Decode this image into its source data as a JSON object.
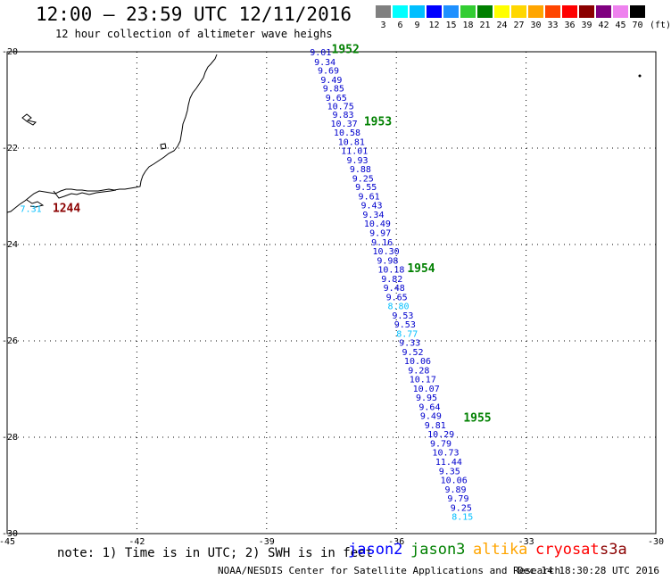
{
  "header": {
    "title": "12:00 – 23:59 UTC 12/11/2016",
    "subtitle": "12 hour collection of altimeter wave heighs"
  },
  "scale": {
    "labels": [
      "3",
      "6",
      "9",
      "12",
      "15",
      "18",
      "21",
      "24",
      "27",
      "30",
      "33",
      "36",
      "39",
      "42",
      "45",
      "70"
    ],
    "colors": [
      "#808080",
      "#00ffff",
      "#00bfff",
      "#0000ff",
      "#1e90ff",
      "#32cd32",
      "#008000",
      "#ffff00",
      "#ffd700",
      "#ffa500",
      "#ff4500",
      "#ff0000",
      "#8b0000",
      "#800080",
      "#ee82ee",
      "#000000"
    ],
    "unit": "(ft)"
  },
  "map": {
    "lon_ticks": [
      "-45",
      "-42",
      "-39",
      "-36",
      "-33",
      "-30"
    ],
    "lat_ticks": [
      "-20",
      "-22",
      "-24",
      "-26",
      "-28",
      "-30"
    ],
    "lon_range": [
      -45,
      -30
    ],
    "lat_range": [
      -30,
      -20
    ],
    "pass_labels": [
      {
        "text": "1952",
        "color": "#008000",
        "lon": -37.5,
        "lat": -19.95
      },
      {
        "text": "1953",
        "color": "#008000",
        "lon": -36.75,
        "lat": -21.45
      },
      {
        "text": "1954",
        "color": "#008000",
        "lon": -35.75,
        "lat": -24.5
      },
      {
        "text": "1955",
        "color": "#008000",
        "lon": -34.45,
        "lat": -27.6
      },
      {
        "text": "1244",
        "color": "#8b0000",
        "lon": -43.95,
        "lat": -23.25
      }
    ],
    "observations": [
      {
        "v": "9.01",
        "lon": -38.0,
        "lat": -20.0,
        "c": "#0000cd"
      },
      {
        "v": "9.34",
        "lon": -37.9,
        "lat": -20.2,
        "c": "#0000cd"
      },
      {
        "v": "9.69",
        "lon": -37.82,
        "lat": -20.38,
        "c": "#0000cd"
      },
      {
        "v": "9.49",
        "lon": -37.75,
        "lat": -20.57,
        "c": "#0000cd"
      },
      {
        "v": "9.85",
        "lon": -37.7,
        "lat": -20.75,
        "c": "#0000cd"
      },
      {
        "v": "9.65",
        "lon": -37.64,
        "lat": -20.94,
        "c": "#0000cd"
      },
      {
        "v": "10.75",
        "lon": -37.6,
        "lat": -21.12,
        "c": "#0000cd"
      },
      {
        "v": "9.83",
        "lon": -37.48,
        "lat": -21.3,
        "c": "#0000cd"
      },
      {
        "v": "10.37",
        "lon": -37.52,
        "lat": -21.48,
        "c": "#0000cd"
      },
      {
        "v": "10.58",
        "lon": -37.45,
        "lat": -21.67,
        "c": "#0000cd"
      },
      {
        "v": "10.81",
        "lon": -37.35,
        "lat": -21.86,
        "c": "#0000cd"
      },
      {
        "v": "11.01",
        "lon": -37.28,
        "lat": -22.05,
        "c": "#0000cd"
      },
      {
        "v": "9.93",
        "lon": -37.15,
        "lat": -22.24,
        "c": "#0000cd"
      },
      {
        "v": "9.88",
        "lon": -37.08,
        "lat": -22.43,
        "c": "#0000cd"
      },
      {
        "v": "9.25",
        "lon": -37.02,
        "lat": -22.62,
        "c": "#0000cd"
      },
      {
        "v": "9.55",
        "lon": -36.95,
        "lat": -22.8,
        "c": "#0000cd"
      },
      {
        "v": "9.61",
        "lon": -36.88,
        "lat": -22.99,
        "c": "#0000cd"
      },
      {
        "v": "9.43",
        "lon": -36.82,
        "lat": -23.18,
        "c": "#0000cd"
      },
      {
        "v": "9.34",
        "lon": -36.78,
        "lat": -23.37,
        "c": "#0000cd"
      },
      {
        "v": "10.49",
        "lon": -36.75,
        "lat": -23.56,
        "c": "#0000cd"
      },
      {
        "v": "9.97",
        "lon": -36.62,
        "lat": -23.75,
        "c": "#0000cd"
      },
      {
        "v": "9.16",
        "lon": -36.58,
        "lat": -23.94,
        "c": "#0000cd"
      },
      {
        "v": "10.30",
        "lon": -36.55,
        "lat": -24.13,
        "c": "#0000cd"
      },
      {
        "v": "9.98",
        "lon": -36.45,
        "lat": -24.32,
        "c": "#0000cd"
      },
      {
        "v": "10.18",
        "lon": -36.43,
        "lat": -24.51,
        "c": "#0000cd"
      },
      {
        "v": "9.82",
        "lon": -36.35,
        "lat": -24.7,
        "c": "#0000cd"
      },
      {
        "v": "9.48",
        "lon": -36.3,
        "lat": -24.89,
        "c": "#0000cd"
      },
      {
        "v": "9.65",
        "lon": -36.24,
        "lat": -25.08,
        "c": "#0000cd"
      },
      {
        "v": "8.80",
        "lon": -36.2,
        "lat": -25.27,
        "c": "#00bfff"
      },
      {
        "v": "9.53",
        "lon": -36.1,
        "lat": -25.46,
        "c": "#0000cd"
      },
      {
        "v": "9.53",
        "lon": -36.05,
        "lat": -25.65,
        "c": "#0000cd"
      },
      {
        "v": "8.77",
        "lon": -36.0,
        "lat": -25.84,
        "c": "#00bfff"
      },
      {
        "v": "9.33",
        "lon": -35.94,
        "lat": -26.03,
        "c": "#0000cd"
      },
      {
        "v": "9.52",
        "lon": -35.87,
        "lat": -26.22,
        "c": "#0000cd"
      },
      {
        "v": "10.06",
        "lon": -35.82,
        "lat": -26.41,
        "c": "#0000cd"
      },
      {
        "v": "9.28",
        "lon": -35.73,
        "lat": -26.6,
        "c": "#0000cd"
      },
      {
        "v": "10.17",
        "lon": -35.7,
        "lat": -26.79,
        "c": "#0000cd"
      },
      {
        "v": "10.07",
        "lon": -35.62,
        "lat": -26.98,
        "c": "#0000cd"
      },
      {
        "v": "9.95",
        "lon": -35.55,
        "lat": -27.17,
        "c": "#0000cd"
      },
      {
        "v": "9.64",
        "lon": -35.48,
        "lat": -27.36,
        "c": "#0000cd"
      },
      {
        "v": "9.49",
        "lon": -35.45,
        "lat": -27.55,
        "c": "#0000cd"
      },
      {
        "v": "9.81",
        "lon": -35.35,
        "lat": -27.74,
        "c": "#0000cd"
      },
      {
        "v": "10.29",
        "lon": -35.28,
        "lat": -27.93,
        "c": "#0000cd"
      },
      {
        "v": "9.79",
        "lon": -35.22,
        "lat": -28.12,
        "c": "#0000cd"
      },
      {
        "v": "10.73",
        "lon": -35.17,
        "lat": -28.31,
        "c": "#0000cd"
      },
      {
        "v": "11.44",
        "lon": -35.1,
        "lat": -28.5,
        "c": "#0000cd"
      },
      {
        "v": "9.35",
        "lon": -35.02,
        "lat": -28.69,
        "c": "#0000cd"
      },
      {
        "v": "10.06",
        "lon": -34.98,
        "lat": -28.88,
        "c": "#0000cd"
      },
      {
        "v": "9.89",
        "lon": -34.88,
        "lat": -29.07,
        "c": "#0000cd"
      },
      {
        "v": "9.79",
        "lon": -34.82,
        "lat": -29.26,
        "c": "#0000cd"
      },
      {
        "v": "9.25",
        "lon": -34.75,
        "lat": -29.45,
        "c": "#0000cd"
      },
      {
        "v": "8.15",
        "lon": -34.72,
        "lat": -29.64,
        "c": "#00bfff"
      },
      {
        "v": "7.31",
        "lon": -44.7,
        "lat": -23.25,
        "c": "#00bfff"
      }
    ]
  },
  "footer": {
    "note": "note: 1) Time is in UTC; 2) SWH is in feet",
    "satellites": [
      {
        "name": "jason2",
        "color": "#0000ff"
      },
      {
        "name": "jason3",
        "color": "#008000"
      },
      {
        "name": "altika",
        "color": "#ffa500"
      },
      {
        "name": "cryosat",
        "color": "#ff0000"
      },
      {
        "name": "s3a",
        "color": "#8b0000"
      }
    ],
    "credit": "NOAA/NESDIS Center for Satellite Applications and Research",
    "timestamp": "Dec 14 18:30:28 UTC 2016"
  }
}
